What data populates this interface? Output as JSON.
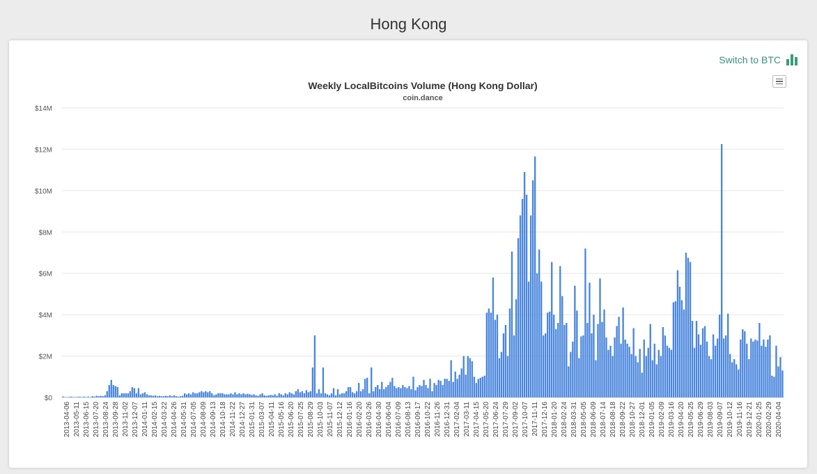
{
  "page": {
    "title": "Hong Kong"
  },
  "controls": {
    "switch_label": "Switch to BTC",
    "switch_icon": "bar-chart-icon",
    "menu_icon": "hamburger-menu-icon"
  },
  "colors": {
    "bar": "#4a86dc",
    "accent": "#3a8f7f",
    "grid": "#e6e6e6"
  },
  "chart_data": {
    "type": "bar",
    "title": "Weekly LocalBitcoins Volume (Hong Kong Dollar)",
    "subtitle": "coin.dance",
    "ylim": [
      0,
      14000000
    ],
    "yticks": [
      0,
      2000000,
      4000000,
      6000000,
      8000000,
      10000000,
      12000000,
      14000000
    ],
    "ytick_labels": [
      "$0",
      "$2M",
      "$4M",
      "$6M",
      "$8M",
      "$10M",
      "$12M",
      "$14M"
    ],
    "grid": true,
    "x_labels": [
      "2013-04-06",
      "2013-05-11",
      "2013-06-15",
      "2013-07-20",
      "2013-08-24",
      "2013-09-28",
      "2013-11-02",
      "2013-12-07",
      "2014-01-11",
      "2014-02-15",
      "2014-03-22",
      "2014-04-26",
      "2014-05-31",
      "2014-07-05",
      "2014-08-09",
      "2014-09-13",
      "2014-10-18",
      "2014-11-22",
      "2014-12-27",
      "2015-01-31",
      "2015-03-07",
      "2015-04-11",
      "2015-05-16",
      "2015-06-20",
      "2015-07-25",
      "2015-08-29",
      "2015-10-03",
      "2015-11-07",
      "2015-12-12",
      "2016-01-16",
      "2016-02-20",
      "2016-03-26",
      "2016-04-30",
      "2016-06-04",
      "2016-07-09",
      "2016-08-13",
      "2016-09-17",
      "2016-10-22",
      "2016-11-26",
      "2016-12-31",
      "2017-02-04",
      "2017-03-11",
      "2017-04-15",
      "2017-05-20",
      "2017-06-24",
      "2017-07-29",
      "2017-09-02",
      "2017-10-07",
      "2017-11-11",
      "2017-12-16",
      "2018-01-20",
      "2018-02-24",
      "2018-03-31",
      "2018-05-05",
      "2018-06-09",
      "2018-07-14",
      "2018-08-18",
      "2018-09-22",
      "2018-10-27",
      "2018-12-01",
      "2019-01-05",
      "2019-02-09",
      "2019-03-16",
      "2019-04-20",
      "2019-05-25",
      "2019-06-29",
      "2019-08-03",
      "2019-09-07",
      "2019-10-12",
      "2019-11-16",
      "2019-12-21",
      "2020-01-25",
      "2020-02-29",
      "2020-04-04"
    ],
    "values": [
      50000,
      20000,
      15000,
      30000,
      40000,
      20000,
      20000,
      30000,
      40000,
      20000,
      40000,
      20000,
      40000,
      20000,
      60000,
      40000,
      80000,
      60000,
      80000,
      60000,
      100000,
      300000,
      600000,
      850000,
      600000,
      550000,
      500000,
      100000,
      200000,
      200000,
      200000,
      200000,
      300000,
      500000,
      450000,
      200000,
      450000,
      150000,
      200000,
      250000,
      150000,
      100000,
      100000,
      80000,
      100000,
      60000,
      80000,
      60000,
      60000,
      80000,
      60000,
      100000,
      60000,
      100000,
      60000,
      40000,
      60000,
      80000,
      200000,
      150000,
      200000,
      150000,
      250000,
      200000,
      200000,
      250000,
      300000,
      250000,
      300000,
      250000,
      300000,
      200000,
      100000,
      150000,
      200000,
      200000,
      200000,
      150000,
      150000,
      150000,
      200000,
      150000,
      250000,
      150000,
      200000,
      150000,
      200000,
      150000,
      180000,
      150000,
      120000,
      150000,
      100000,
      80000,
      150000,
      200000,
      100000,
      80000,
      100000,
      120000,
      100000,
      150000,
      80000,
      200000,
      150000,
      100000,
      200000,
      150000,
      250000,
      200000,
      150000,
      300000,
      400000,
      250000,
      300000,
      200000,
      350000,
      250000,
      300000,
      1450000,
      3000000,
      200000,
      400000,
      200000,
      1450000,
      200000,
      150000,
      100000,
      200000,
      450000,
      100000,
      400000,
      150000,
      200000,
      200000,
      300000,
      500000,
      500000,
      250000,
      200000,
      300000,
      700000,
      300000,
      400000,
      900000,
      950000,
      200000,
      1450000,
      300000,
      500000,
      600000,
      400000,
      750000,
      400000,
      500000,
      600000,
      750000,
      950000,
      550000,
      450000,
      500000,
      450000,
      600000,
      500000,
      450000,
      550000,
      400000,
      1000000,
      350000,
      500000,
      600000,
      550000,
      850000,
      600000,
      450000,
      900000,
      300000,
      700000,
      600000,
      850000,
      800000,
      600000,
      900000,
      900000,
      800000,
      1800000,
      750000,
      1250000,
      900000,
      1100000,
      1400000,
      2000000,
      1100000,
      2000000,
      1900000,
      1750000,
      1000000,
      700000,
      900000,
      950000,
      1000000,
      1050000,
      4100000,
      4300000,
      4100000,
      5800000,
      3750000,
      4000000,
      1900000,
      2200000,
      3100000,
      3500000,
      2000000,
      4300000,
      7050000,
      3000000,
      4750000,
      7700000,
      8800000,
      9600000,
      10900000,
      9800000,
      5600000,
      8800000,
      10500000,
      11650000,
      6000000,
      7150000,
      5600000,
      3000000,
      3100000,
      4100000,
      4150000,
      6550000,
      4000000,
      3300000,
      3600000,
      6350000,
      4900000,
      3500000,
      3600000,
      1500000,
      2200000,
      2700000,
      5400000,
      4200000,
      1900000,
      2950000,
      3000000,
      7200000,
      3600000,
      5550000,
      3100000,
      4000000,
      1800000,
      3550000,
      5750000,
      3650000,
      4250000,
      2900000,
      2300000,
      2500000,
      2000000,
      2900000,
      3450000,
      3900000,
      2600000,
      4350000,
      2800000,
      2600000,
      2450000,
      2100000,
      3350000,
      2000000,
      1700000,
      2350000,
      1200000,
      2800000,
      2000000,
      2400000,
      3550000,
      1800000,
      2600000,
      1600000,
      2300000,
      2000000,
      3400000,
      3000000,
      2500000,
      2400000,
      2300000,
      4600000,
      4650000,
      6150000,
      5350000,
      4700000,
      4250000,
      7000000,
      6750000,
      6550000,
      3700000,
      2400000,
      3700000,
      3050000,
      2550000,
      3350000,
      3450000,
      2700000,
      2000000,
      1850000,
      3050000,
      2500000,
      2850000,
      4000000,
      12250000,
      2850000,
      3000000,
      4050000,
      2100000,
      1700000,
      1850000,
      1600000,
      1350000,
      2800000,
      3300000,
      3200000,
      2600000,
      1850000,
      2850000,
      2700000,
      2800000,
      2750000,
      3600000,
      2500000,
      2800000,
      2450000,
      2800000,
      3000000,
      1050000,
      1000000,
      2500000,
      1500000,
      1950000,
      1300000
    ]
  }
}
